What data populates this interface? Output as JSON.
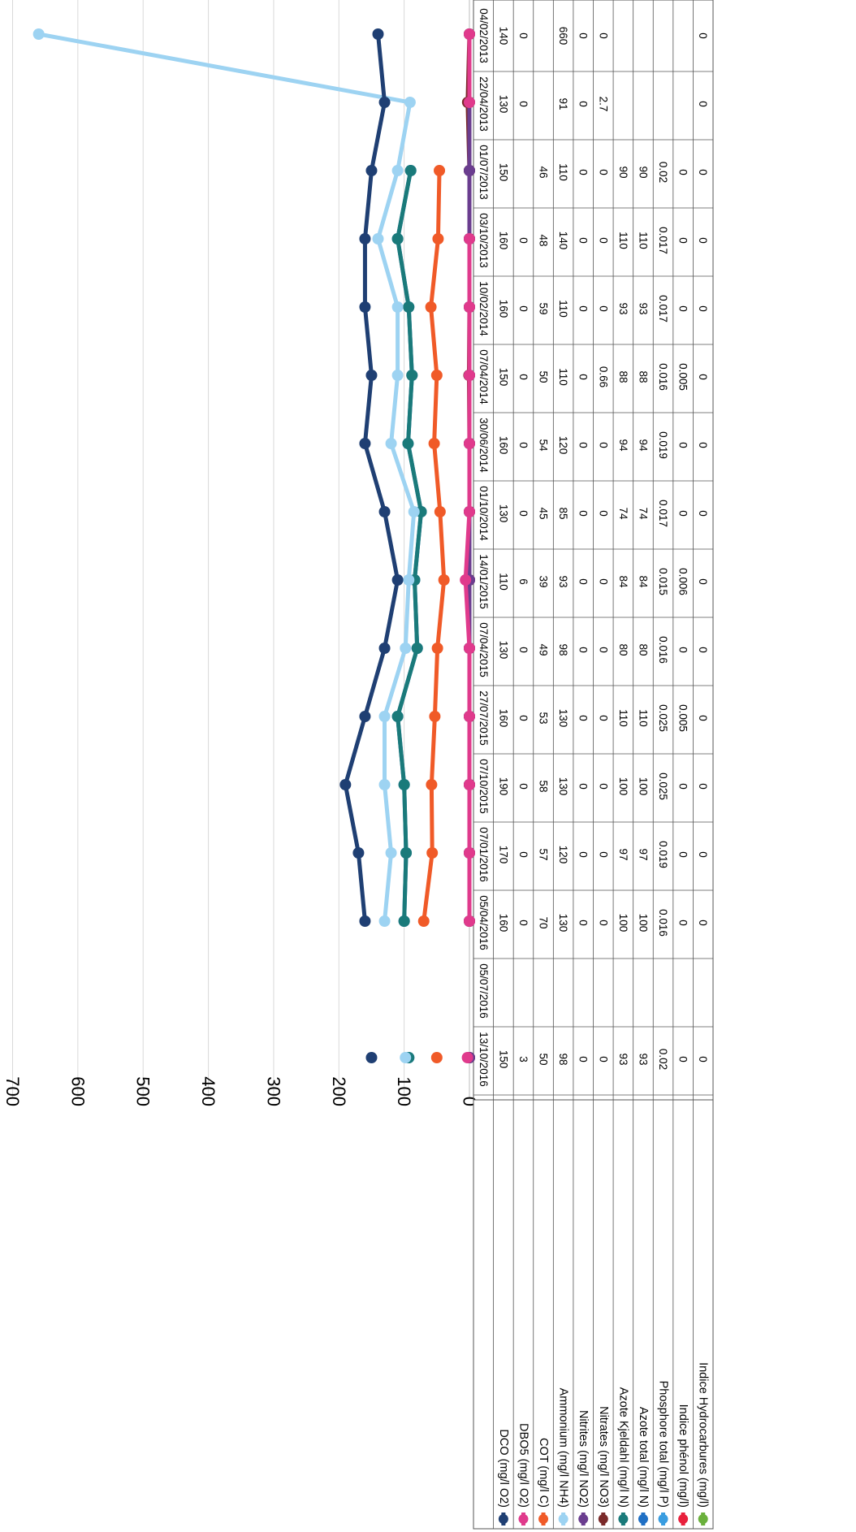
{
  "chart_data": {
    "type": "line",
    "ylim": [
      0,
      700
    ],
    "yticks": [
      "0",
      "100",
      "200",
      "300",
      "400",
      "500",
      "600",
      "700"
    ],
    "grid": true,
    "legend_position": "table-left",
    "orientation": "rotated-90-clockwise",
    "categories": [
      "04/02/2013",
      "22/04/2013",
      "01/07/2013",
      "03/10/2013",
      "10/02/2014",
      "07/04/2014",
      "30/06/2014",
      "01/10/2014",
      "14/01/2015",
      "07/04/2015",
      "27/07/2015",
      "07/10/2015",
      "07/01/2016",
      "05/04/2016",
      "05/07/2016",
      "13/10/2016"
    ],
    "series": [
      {
        "name": "DCO (mg/l O2)",
        "color": "#1f3f73",
        "values": [
          140,
          130,
          150,
          160,
          160,
          150,
          160,
          130,
          110,
          130,
          160,
          190,
          170,
          160,
          null,
          150
        ],
        "labels": [
          "140",
          "130",
          "150",
          "160",
          "160",
          "150",
          "160",
          "130",
          "110",
          "130",
          "160",
          "190",
          "170",
          "160",
          "",
          "150"
        ]
      },
      {
        "name": "DBO5 (mg/l O2)",
        "color": "#e03a8c",
        "values": [
          0,
          0,
          null,
          0,
          0,
          0,
          0,
          0,
          6,
          0,
          0,
          0,
          0,
          0,
          null,
          3
        ],
        "labels": [
          "0",
          "0",
          "",
          "0",
          "0",
          "0",
          "0",
          "0",
          "6",
          "0",
          "0",
          "0",
          "0",
          "0",
          "",
          "3"
        ]
      },
      {
        "name": "COT (mg/l C)",
        "color": "#f05a28",
        "values": [
          null,
          null,
          46,
          48,
          59,
          50,
          54,
          45,
          39,
          49,
          53,
          58,
          57,
          70,
          null,
          50
        ],
        "labels": [
          "",
          "",
          "46",
          "48",
          "59",
          "50",
          "54",
          "45",
          "39",
          "49",
          "53",
          "58",
          "57",
          "70",
          "",
          "50"
        ]
      },
      {
        "name": "Ammonium (mg/l NH4)",
        "color": "#9dd3f2",
        "values": [
          660,
          91,
          110,
          140,
          110,
          110,
          120,
          85,
          93,
          98,
          130,
          130,
          120,
          130,
          null,
          98
        ],
        "labels": [
          "660",
          "91",
          "110",
          "140",
          "110",
          "110",
          "120",
          "85",
          "93",
          "98",
          "130",
          "130",
          "120",
          "130",
          "",
          "98"
        ]
      },
      {
        "name": "Nitrites (mg/l NO2)",
        "color": "#6a3d8f",
        "values": [
          0,
          0,
          0,
          0,
          0,
          0,
          0,
          0,
          0,
          0,
          0,
          0,
          0,
          0,
          null,
          0
        ],
        "labels": [
          "0",
          "0",
          "0",
          "0",
          "0",
          "0",
          "0",
          "0",
          "0",
          "0",
          "0",
          "0",
          "0",
          "0",
          "",
          "0"
        ]
      },
      {
        "name": "Nitrates (mg/l NO3)",
        "color": "#7a2a2a",
        "values": [
          0,
          2.7,
          0,
          0,
          0,
          0.66,
          0,
          0,
          0,
          0,
          0,
          0,
          0,
          0,
          null,
          0
        ],
        "labels": [
          "0",
          "2.7",
          "0",
          "0",
          "0",
          "0.66",
          "0",
          "0",
          "0",
          "0",
          "0",
          "0",
          "0",
          "0",
          "",
          "0"
        ]
      },
      {
        "name": "Azote Kjeldahl (mg/l N)",
        "color": "#1a7a7a",
        "values": [
          null,
          null,
          90,
          110,
          93,
          88,
          94,
          74,
          84,
          80,
          110,
          100,
          97,
          100,
          null,
          93
        ],
        "labels": [
          "",
          "",
          "90",
          "110",
          "93",
          "88",
          "94",
          "74",
          "84",
          "80",
          "110",
          "100",
          "97",
          "100",
          "",
          "93"
        ]
      },
      {
        "name": "Azote total  (mg/l N)",
        "color": "#1f6fc4",
        "values": [
          null,
          null,
          90,
          110,
          93,
          88,
          94,
          74,
          84,
          80,
          110,
          100,
          97,
          100,
          null,
          93
        ],
        "labels": [
          "",
          "",
          "90",
          "110",
          "93",
          "88",
          "94",
          "74",
          "84",
          "80",
          "110",
          "100",
          "97",
          "100",
          "",
          "93"
        ]
      },
      {
        "name": "Phosphore total (mg/l P)",
        "color": "#3a9de0",
        "values": [
          null,
          null,
          0.02,
          0.017,
          0.017,
          0.016,
          0.019,
          0.017,
          0.015,
          0.016,
          0.025,
          0.025,
          0.019,
          0.016,
          null,
          0.02
        ],
        "labels": [
          "",
          "",
          "0.02",
          "0.017",
          "0.017",
          "0.016",
          "0.019",
          "0.017",
          "0.015",
          "0.016",
          "0.025",
          "0.025",
          "0.019",
          "0.016",
          "",
          "0.02"
        ]
      },
      {
        "name": "Indice phénol (mg/l)",
        "color": "#e8203c",
        "values": [
          null,
          null,
          0,
          0,
          0,
          0.005,
          0,
          0,
          0.006,
          0,
          0.005,
          0,
          0,
          0,
          null,
          0
        ],
        "labels": [
          "",
          "",
          "0",
          "0",
          "0",
          "0.005",
          "0",
          "0",
          "0.006",
          "0",
          "0.005",
          "0",
          "0",
          "0",
          "",
          "0"
        ]
      },
      {
        "name": "Indice Hydrocarbures (mg/l)",
        "color": "#6ab03c",
        "values": [
          0,
          0,
          0,
          0,
          0,
          0,
          0,
          0,
          0,
          0,
          0,
          0,
          0,
          0,
          null,
          0
        ],
        "labels": [
          "0",
          "0",
          "0",
          "0",
          "0",
          "0",
          "0",
          "0",
          "0",
          "0",
          "0",
          "0",
          "0",
          "0",
          "",
          "0"
        ]
      }
    ],
    "plot_order": [
      10,
      9,
      8,
      7,
      6,
      5,
      4,
      1,
      2,
      3,
      0
    ]
  }
}
